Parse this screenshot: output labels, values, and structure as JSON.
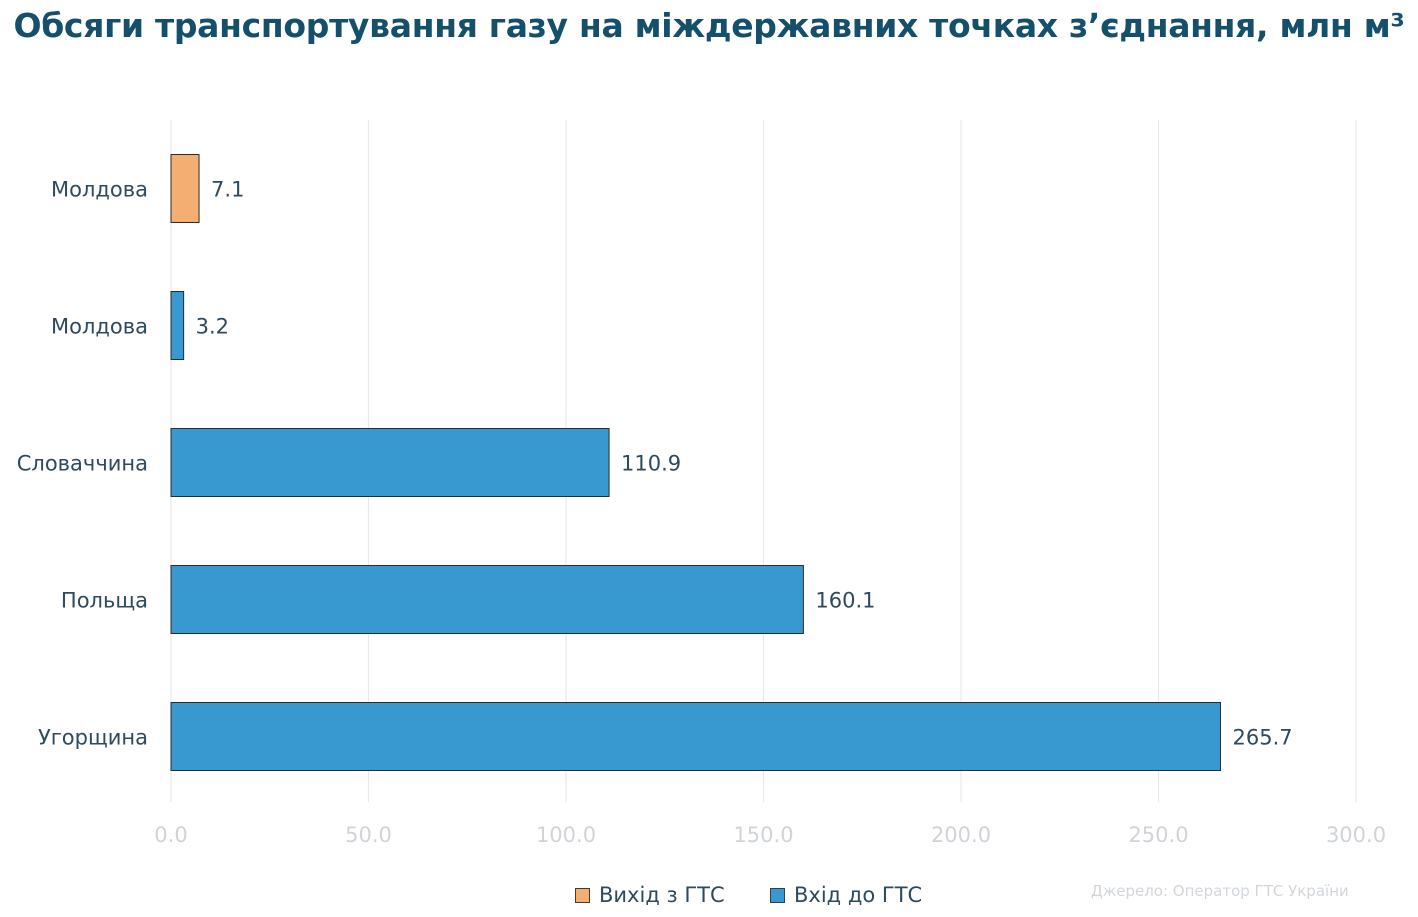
{
  "title": "Обсяги транспортування газу на міждержавних точках з’єднання, млн м³",
  "source": "Джерело: Оператор ГТС України",
  "colors": {
    "title": "#14506b",
    "exit": "#f5ae72",
    "entry": "#3899d0",
    "grid": "#e8e8e8",
    "tick": "#d0d4d8",
    "category": "#2d4a5e"
  },
  "legend": [
    {
      "label": "Вихід з ГТС",
      "color": "#f5ae72"
    },
    {
      "label": "Вхід до ГТС",
      "color": "#3899d0"
    }
  ],
  "chart_data": {
    "type": "bar",
    "orientation": "horizontal",
    "categories": [
      "Молдова",
      "Молдова",
      "Словаччина",
      "Польща",
      "Угорщина"
    ],
    "series": [
      {
        "name": "Вихід з ГТС",
        "values": [
          7.1,
          null,
          null,
          null,
          null
        ]
      },
      {
        "name": "Вхід до ГТС",
        "values": [
          null,
          3.2,
          110.9,
          160.1,
          265.7
        ]
      }
    ],
    "xlim": [
      0,
      300
    ],
    "xticks": [
      "0.0",
      "50.0",
      "100.0",
      "150.0",
      "200.0",
      "250.0",
      "300.0"
    ],
    "grid": true,
    "legend_position": "bottom"
  }
}
